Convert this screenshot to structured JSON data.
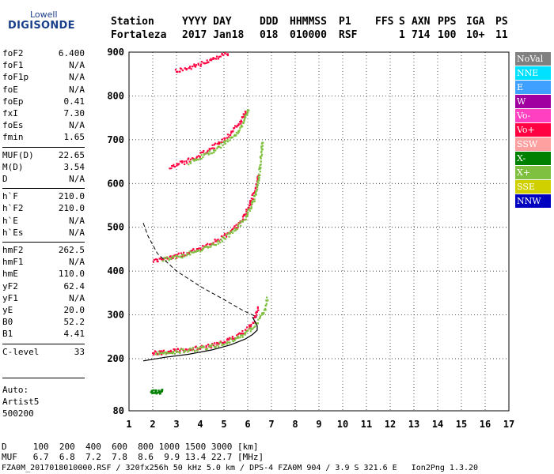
{
  "logo": {
    "top": "Lowell",
    "brand": "DIGISONDE"
  },
  "header": {
    "labels": [
      "Station",
      "YYYY DAY",
      "DDD",
      "HHMMSS",
      "P1",
      "FFS",
      "S",
      "AXN",
      "PPS",
      "IGA",
      "PS"
    ],
    "values": [
      "Fortaleza",
      "2017 Jan18",
      "018",
      "010000",
      "RSF",
      "",
      "1",
      "714",
      "100",
      "10+",
      "11"
    ]
  },
  "params": [
    {
      "k": "foF2",
      "v": "6.400"
    },
    {
      "k": "foF1",
      "v": "N/A"
    },
    {
      "k": "foF1p",
      "v": "N/A"
    },
    {
      "k": "foE",
      "v": "N/A"
    },
    {
      "k": "foEp",
      "v": "0.41"
    },
    {
      "k": "fxI",
      "v": "7.30"
    },
    {
      "k": "foEs",
      "v": "N/A"
    },
    {
      "k": "fmin",
      "v": "1.65"
    },
    {
      "k": "MUF(D)",
      "v": "22.65"
    },
    {
      "k": "M(D)",
      "v": "3.54"
    },
    {
      "k": "D",
      "v": "N/A"
    },
    {
      "k": "h`F",
      "v": "210.0"
    },
    {
      "k": "h`F2",
      "v": "210.0"
    },
    {
      "k": "h`E",
      "v": "N/A"
    },
    {
      "k": "h`Es",
      "v": "N/A"
    },
    {
      "k": "hmF2",
      "v": "262.5"
    },
    {
      "k": "hmF1",
      "v": "N/A"
    },
    {
      "k": "hmE",
      "v": "110.0"
    },
    {
      "k": "yF2",
      "v": "62.4"
    },
    {
      "k": "yF1",
      "v": "N/A"
    },
    {
      "k": "yE",
      "v": "20.0"
    },
    {
      "k": "B0",
      "v": "52.2"
    },
    {
      "k": "B1",
      "v": "4.41"
    },
    {
      "k": "C-level",
      "v": "33"
    }
  ],
  "auto": {
    "line1": "Auto:",
    "line2": "Artist5",
    "line3": "500200"
  },
  "legend": [
    {
      "label": "NoVal",
      "color": "#808080"
    },
    {
      "label": "NNE",
      "color": "#00e0ff"
    },
    {
      "label": "E",
      "color": "#40a0ff"
    },
    {
      "label": "W",
      "color": "#a000a0"
    },
    {
      "label": "Vo-",
      "color": "#ff40c0"
    },
    {
      "label": "Vo+",
      "color": "#ff0040"
    },
    {
      "label": "SSW",
      "color": "#ffa0a0"
    },
    {
      "label": "X-",
      "color": "#008000"
    },
    {
      "label": "X+",
      "color": "#80c040"
    },
    {
      "label": "SSE",
      "color": "#d0d000"
    },
    {
      "label": "NNW",
      "color": "#0000c0"
    }
  ],
  "chart_data": {
    "type": "scatter",
    "xlabel": "",
    "ylabel": "",
    "xlim": [
      1,
      17
    ],
    "ylim": [
      80,
      900
    ],
    "x_ticks": [
      1,
      2,
      3,
      4,
      5,
      6,
      7,
      8,
      9,
      10,
      11,
      12,
      13,
      14,
      15,
      16,
      17
    ],
    "y_ticks": [
      80,
      200,
      300,
      400,
      500,
      600,
      700,
      800,
      900
    ],
    "grid": true,
    "profile_solid": {
      "x": [
        1.6,
        2.5,
        3.5,
        4.5,
        5.3,
        5.9,
        6.2,
        6.4,
        6.4,
        6.3,
        6.2
      ],
      "y": [
        195,
        203,
        210,
        220,
        232,
        245,
        255,
        265,
        275,
        285,
        295
      ]
    },
    "profile_dashed": {
      "x": [
        1.6,
        1.8,
        2.2,
        3.0,
        4.0,
        5.0,
        5.8,
        6.2,
        6.4
      ],
      "y": [
        510,
        480,
        440,
        400,
        365,
        335,
        310,
        300,
        295
      ]
    },
    "traces": [
      {
        "name": "O-F2",
        "color": "#ff0040",
        "x": [
          1.95,
          2.2,
          2.5,
          3.0,
          3.5,
          4.0,
          4.5,
          5.0,
          5.4,
          5.8,
          6.0,
          6.2,
          6.3,
          6.4
        ],
        "y": [
          215,
          215,
          217,
          220,
          223,
          227,
          232,
          240,
          250,
          262,
          272,
          285,
          300,
          320
        ]
      },
      {
        "name": "X-F2",
        "color": "#80c040",
        "x": [
          2.1,
          2.5,
          3.0,
          3.5,
          4.0,
          4.5,
          5.0,
          5.5,
          5.9,
          6.2,
          6.5,
          6.7,
          6.8
        ],
        "y": [
          213,
          215,
          218,
          221,
          225,
          230,
          238,
          248,
          260,
          275,
          295,
          315,
          340
        ]
      },
      {
        "name": "2F",
        "color": "#ff0040",
        "x": [
          2.0,
          2.3,
          2.7,
          3.2,
          3.7,
          4.2,
          4.7,
          5.2,
          5.6,
          5.9,
          6.1,
          6.3,
          6.4
        ],
        "y": [
          425,
          428,
          432,
          440,
          448,
          458,
          472,
          490,
          510,
          535,
          560,
          590,
          620
        ]
      },
      {
        "name": "2FX",
        "color": "#80c040",
        "x": [
          2.4,
          3.0,
          3.5,
          4.0,
          4.5,
          5.0,
          5.5,
          5.9,
          6.2,
          6.4,
          6.5,
          6.6
        ],
        "y": [
          428,
          434,
          442,
          450,
          462,
          478,
          500,
          525,
          560,
          600,
          650,
          700
        ]
      },
      {
        "name": "3F",
        "color": "#ff0040",
        "x": [
          2.7,
          3.0,
          3.5,
          4.0,
          4.5,
          5.0,
          5.4,
          5.7,
          5.9
        ],
        "y": [
          640,
          645,
          655,
          668,
          685,
          705,
          725,
          745,
          770
        ]
      },
      {
        "name": "3FX",
        "color": "#80c040",
        "x": [
          3.5,
          4.0,
          4.5,
          5.0,
          5.5,
          5.8,
          6.0
        ],
        "y": [
          650,
          662,
          676,
          695,
          715,
          740,
          775
        ]
      },
      {
        "name": "4F",
        "color": "#ff0040",
        "x": [
          2.9,
          3.2,
          3.6,
          4.0,
          4.5,
          4.9,
          5.2
        ],
        "y": [
          858,
          862,
          868,
          875,
          885,
          895,
          900
        ]
      },
      {
        "name": "Es",
        "color": "#008000",
        "x": [
          1.9,
          2.0,
          2.1,
          2.2,
          2.3,
          2.4
        ],
        "y": [
          125,
          126,
          126,
          125,
          126,
          127
        ]
      }
    ]
  },
  "footer": {
    "d_row": "D     100  200  400  600  800 1000 1500 3000 [km]",
    "muf_row": "MUF   6.7  6.8  7.2  7.8  8.6  9.9 13.4 22.7 [MHz]",
    "file_row": "FZA0M_2017018010000.RSF / 320fx256h 50 kHz 5.0 km / DPS-4 FZA0M 904 / 3.9 S 321.6 E   Ion2Png 1.3.20"
  }
}
